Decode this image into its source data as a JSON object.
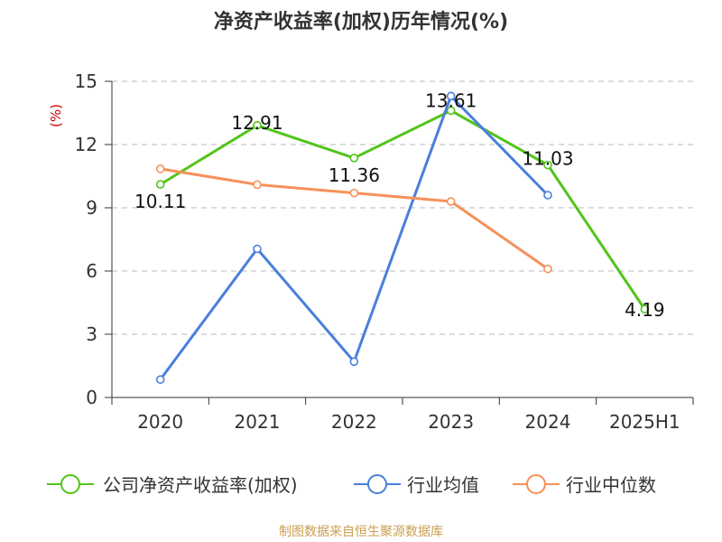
{
  "page_title": "净资产收益率(加权)历年情况(%)",
  "source_note": "制图数据来自恒生聚源数据库",
  "chart_data": {
    "type": "line",
    "title": "净资产收益率(加权)历年情况(%)",
    "ylabel": "(%)",
    "xlabel": "",
    "categories": [
      "2020",
      "2021",
      "2022",
      "2023",
      "2024",
      "2025H1"
    ],
    "ylim": [
      0,
      15
    ],
    "yticks": [
      0,
      3,
      6,
      9,
      12,
      15
    ],
    "grid": true,
    "legend_position": "bottom",
    "series": [
      {
        "name": "公司净资产收益率(加权)",
        "color": "#52c41a",
        "values": [
          10.11,
          12.91,
          11.36,
          13.61,
          11.03,
          4.19
        ],
        "data_labels": [
          "10.11",
          "12.91",
          "11.36",
          "13.61",
          "11.03",
          "4.19"
        ]
      },
      {
        "name": "行业均值",
        "color": "#4a7fdc",
        "values": [
          0.85,
          7.05,
          1.7,
          14.3,
          9.6,
          null
        ]
      },
      {
        "name": "行业中位数",
        "color": "#f5915a",
        "values": [
          10.85,
          10.1,
          9.7,
          9.3,
          6.1,
          null
        ]
      }
    ]
  }
}
